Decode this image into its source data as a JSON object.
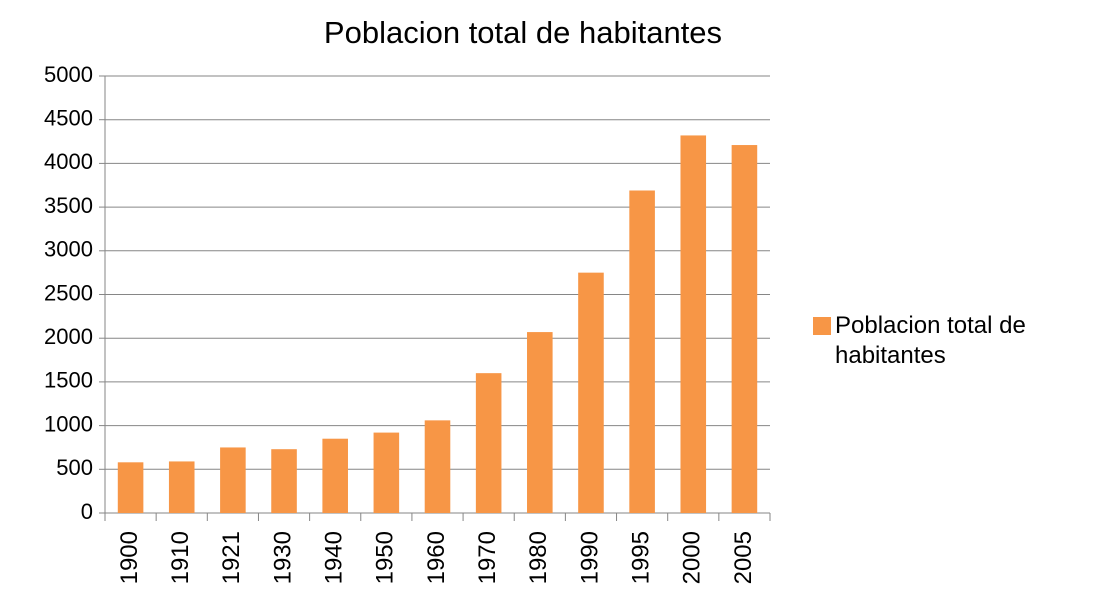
{
  "chart_data": {
    "type": "bar",
    "title": "Poblacion total de habitantes",
    "categories": [
      "1900",
      "1910",
      "1921",
      "1930",
      "1940",
      "1950",
      "1960",
      "1970",
      "1980",
      "1990",
      "1995",
      "2000",
      "2005"
    ],
    "series": [
      {
        "name": "Poblacion total de habitantes",
        "color": "#f79646",
        "values": [
          580,
          590,
          750,
          730,
          850,
          920,
          1060,
          1600,
          2070,
          2750,
          3690,
          4320,
          4210
        ]
      }
    ],
    "ylim": [
      0,
      5000
    ],
    "yticks": [
      0,
      500,
      1000,
      1500,
      2000,
      2500,
      3000,
      3500,
      4000,
      4500,
      5000
    ],
    "grid": true,
    "legend": "right"
  }
}
